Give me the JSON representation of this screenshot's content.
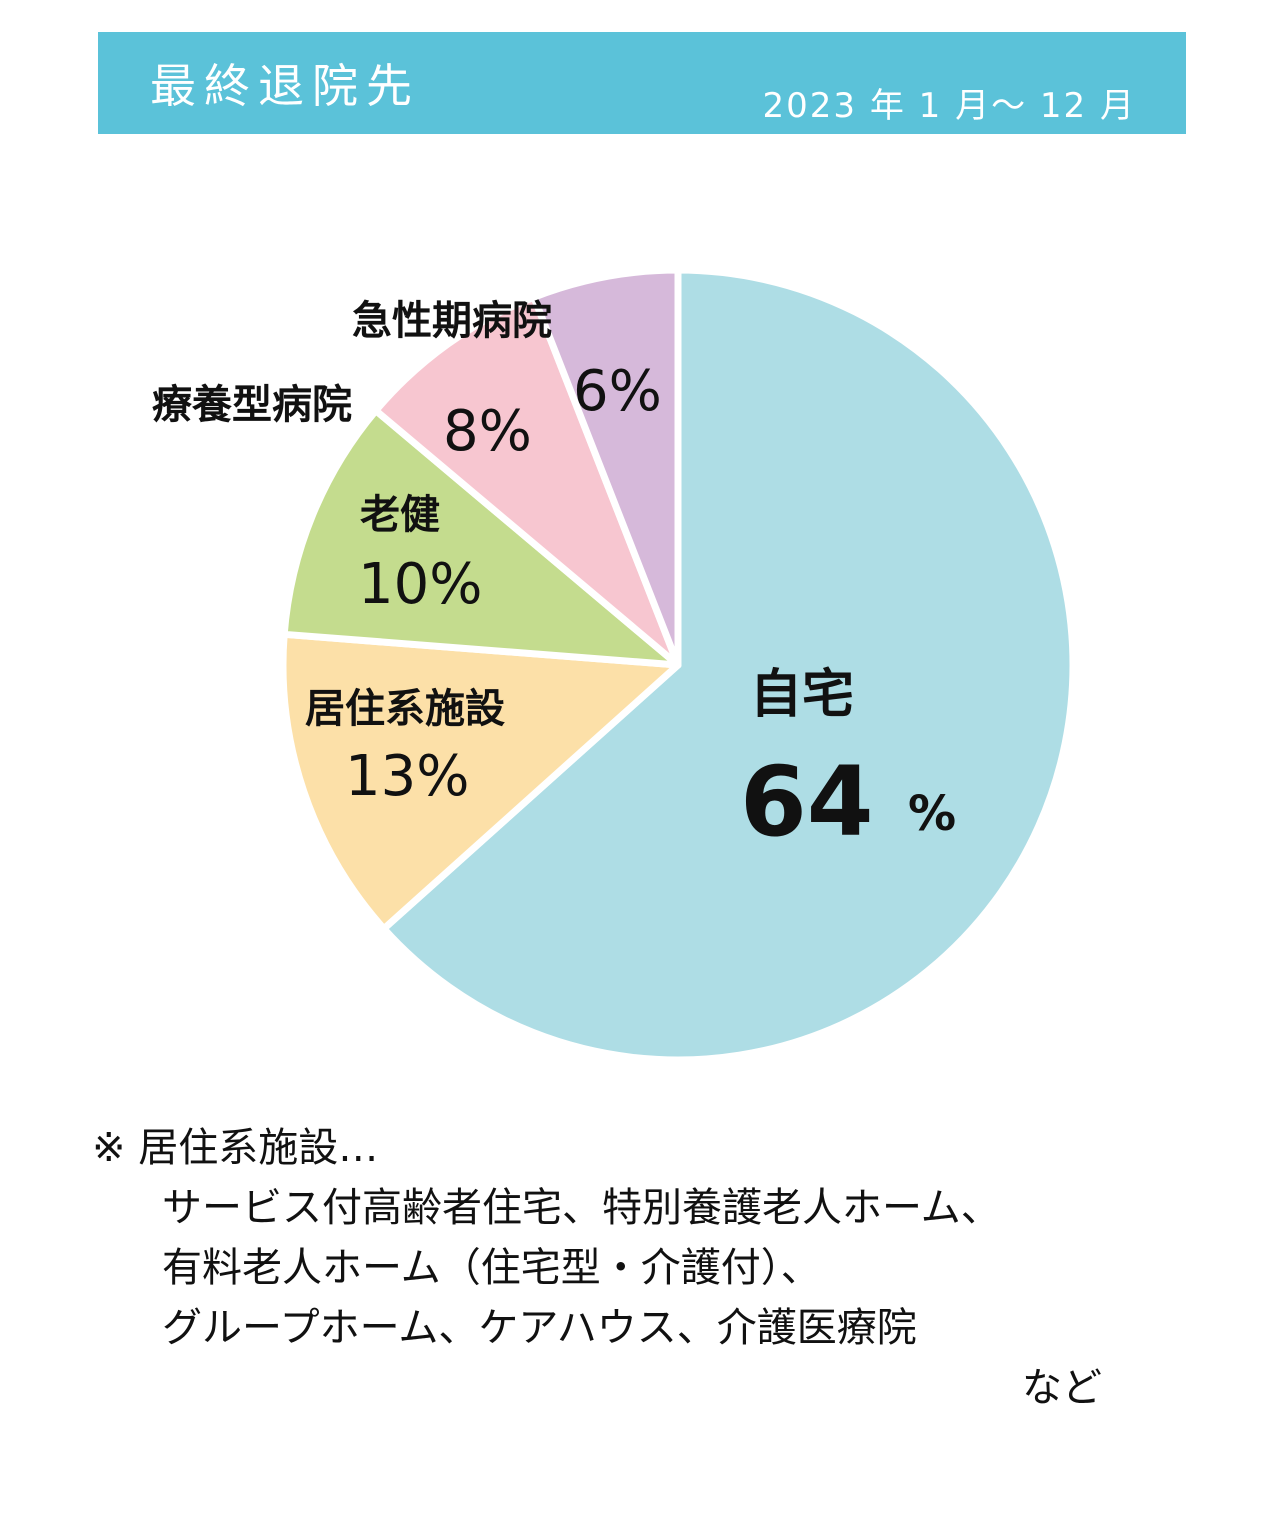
{
  "header": {
    "title": "最終退院先",
    "period": "2023 年 1 月～ 12 月",
    "color": "#5bc2d9"
  },
  "chart_data": {
    "type": "pie",
    "title": "最終退院先",
    "subtitle": "2023 年 1 月～ 12 月",
    "slices": [
      {
        "label": "自宅",
        "value": 64,
        "value_label": "64",
        "unit_label": "%",
        "color": "#aedde5"
      },
      {
        "label": "居住系施設",
        "value": 13,
        "value_label": "13%",
        "color": "#fce0a8"
      },
      {
        "label": "老健",
        "value": 10,
        "value_label": "10%",
        "color": "#c4dc8e"
      },
      {
        "label": "療養型病院",
        "value": 8,
        "value_label": "8%",
        "color": "#f7c6d0"
      },
      {
        "label": "急性期病院",
        "value": 6,
        "value_label": "6%",
        "color": "#d6b9da"
      }
    ],
    "start_angle": "12 o'clock",
    "direction": "clockwise",
    "unit": "%"
  },
  "footnote": {
    "heading": "※ 居住系施設…",
    "lines": [
      "サービス付高齢者住宅、特別養護老人ホーム、",
      "有料老人ホーム（住宅型・介護付）、",
      "グループホーム、ケアハウス、介護医療院"
    ],
    "tail": "など"
  }
}
